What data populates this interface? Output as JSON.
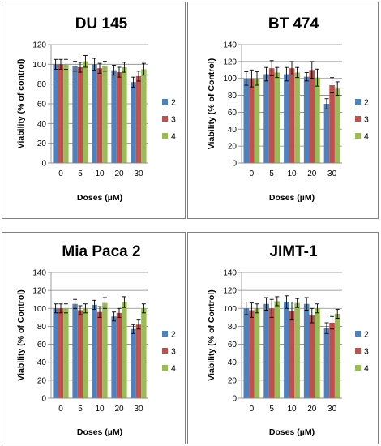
{
  "chart_data": [
    {
      "type": "bar",
      "title": "DU 145",
      "xlabel": "Doses (µM)",
      "ylabel": "Viability (% of control)",
      "categories": [
        "0",
        "5",
        "10",
        "20",
        "30"
      ],
      "ylim": [
        0,
        120
      ],
      "yticks": [
        "0",
        "20",
        "40",
        "60",
        "80",
        "100",
        "120"
      ],
      "legend_position": "right",
      "series": [
        {
          "name": "2",
          "color": "#4f81bd",
          "values": [
            100,
            98,
            100,
            94,
            82
          ],
          "errors": [
            5,
            5,
            6,
            5,
            5
          ]
        },
        {
          "name": "3",
          "color": "#c0504d",
          "values": [
            100,
            97,
            96,
            92,
            88
          ],
          "errors": [
            5,
            5,
            5,
            5,
            5
          ]
        },
        {
          "name": "4",
          "color": "#9bbb59",
          "values": [
            100,
            103,
            98,
            97,
            95
          ],
          "errors": [
            5,
            6,
            5,
            5,
            6
          ]
        }
      ]
    },
    {
      "type": "bar",
      "title": "BT 474",
      "xlabel": "Doses (µM)",
      "ylabel": "Viability (% of Control)",
      "categories": [
        "0",
        "5",
        "10",
        "20",
        "30"
      ],
      "ylim": [
        0,
        140
      ],
      "yticks": [
        "0",
        "20",
        "40",
        "60",
        "80",
        "100",
        "120",
        "140"
      ],
      "legend_position": "right",
      "series": [
        {
          "name": "2",
          "color": "#4f81bd",
          "values": [
            100,
            105,
            105,
            102,
            70
          ],
          "errors": [
            8,
            8,
            8,
            5,
            6
          ]
        },
        {
          "name": "3",
          "color": "#c0504d",
          "values": [
            100,
            112,
            112,
            110,
            92
          ],
          "errors": [
            10,
            9,
            8,
            10,
            9
          ]
        },
        {
          "name": "4",
          "color": "#9bbb59",
          "values": [
            100,
            107,
            107,
            101,
            88
          ],
          "errors": [
            8,
            6,
            6,
            10,
            8
          ]
        }
      ]
    },
    {
      "type": "bar",
      "title": "Mia Paca 2",
      "xlabel": "Doses (µM)",
      "ylabel": "Viability (% of Control)",
      "categories": [
        "0",
        "5",
        "10",
        "20",
        "30"
      ],
      "ylim": [
        0,
        140
      ],
      "yticks": [
        "0",
        "20",
        "40",
        "60",
        "80",
        "100",
        "120",
        "140"
      ],
      "legend_position": "right",
      "series": [
        {
          "name": "2",
          "color": "#4f81bd",
          "values": [
            100,
            105,
            104,
            91,
            77
          ],
          "errors": [
            5,
            5,
            5,
            5,
            5
          ]
        },
        {
          "name": "3",
          "color": "#c0504d",
          "values": [
            100,
            98,
            96,
            95,
            82
          ],
          "errors": [
            5,
            5,
            6,
            5,
            5
          ]
        },
        {
          "name": "4",
          "color": "#9bbb59",
          "values": [
            100,
            100,
            106,
            107,
            100
          ],
          "errors": [
            5,
            5,
            6,
            6,
            5
          ]
        }
      ]
    },
    {
      "type": "bar",
      "title": "JIMT-1",
      "xlabel": "Doses (µM)",
      "ylabel": "Viability (% of Control)",
      "categories": [
        "0",
        "5",
        "10",
        "20",
        "30"
      ],
      "ylim": [
        0,
        140
      ],
      "yticks": [
        "0",
        "20",
        "40",
        "60",
        "80",
        "100",
        "120",
        "140"
      ],
      "legend_position": "right",
      "series": [
        {
          "name": "2",
          "color": "#4f81bd",
          "values": [
            100,
            105,
            107,
            105,
            78
          ],
          "errors": [
            7,
            7,
            7,
            7,
            6
          ]
        },
        {
          "name": "3",
          "color": "#c0504d",
          "values": [
            98,
            100,
            97,
            92,
            84
          ],
          "errors": [
            8,
            10,
            10,
            8,
            7
          ]
        },
        {
          "name": "4",
          "color": "#9bbb59",
          "values": [
            100,
            108,
            106,
            100,
            94
          ],
          "errors": [
            5,
            5,
            5,
            5,
            5
          ]
        }
      ]
    }
  ]
}
